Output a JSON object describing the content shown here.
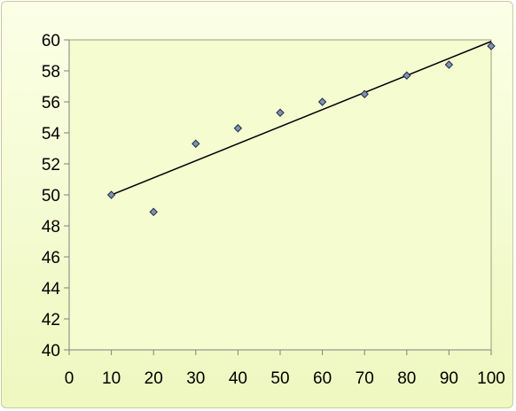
{
  "chart_data": {
    "type": "scatter",
    "title": "",
    "xlabel": "",
    "ylabel": "",
    "xlim": [
      0,
      100
    ],
    "ylim": [
      40,
      60
    ],
    "x_ticks": [
      0,
      10,
      20,
      30,
      40,
      50,
      60,
      70,
      80,
      90,
      100
    ],
    "y_ticks": [
      40,
      42,
      44,
      46,
      48,
      50,
      52,
      54,
      56,
      58,
      60
    ],
    "grid": false,
    "legend": "none",
    "series": [
      {
        "x": [
          10,
          20,
          30,
          40,
          50,
          60,
          70,
          80,
          90,
          100
        ],
        "y": [
          50.0,
          48.9,
          53.3,
          54.3,
          55.3,
          56.0,
          56.5,
          57.7,
          58.4,
          59.6
        ]
      }
    ],
    "trendline": {
      "type": "linear",
      "x": [
        10,
        100
      ],
      "y": [
        50.0,
        59.9
      ]
    },
    "colors": {
      "plot_area": "#f4fcd0",
      "marker_fill": "#7f93b0",
      "marker_stroke": "#1f2a44",
      "trendline": "#000000",
      "axis": "#808080"
    }
  }
}
